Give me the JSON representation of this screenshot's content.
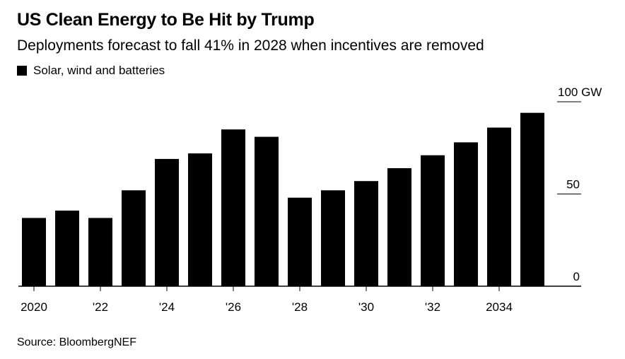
{
  "header": {
    "title": "US Clean Energy to Be Hit by Trump",
    "subtitle": "Deployments forecast to fall 41% in 2028 when incentives are removed"
  },
  "legend": {
    "label": "Solar, wind and batteries"
  },
  "footer": {
    "source": "Source: BloombergNEF"
  },
  "chart_data": {
    "type": "bar",
    "title": "US Clean Energy to Be Hit by Trump",
    "subtitle": "Deployments forecast to fall 41% in 2028 when incentives are removed",
    "categories": [
      2020,
      2021,
      2022,
      2023,
      2024,
      2025,
      2026,
      2027,
      2028,
      2029,
      2030,
      2031,
      2032,
      2033,
      2034,
      2035
    ],
    "series": [
      {
        "name": "Solar, wind and batteries",
        "values": [
          37,
          41,
          37,
          52,
          69,
          72,
          85,
          81,
          48,
          52,
          57,
          64,
          71,
          78,
          86,
          94
        ]
      }
    ],
    "x_tick_labels": [
      {
        "year": 2020,
        "label": "2020"
      },
      {
        "year": 2022,
        "label": "'22"
      },
      {
        "year": 2024,
        "label": "'24"
      },
      {
        "year": 2026,
        "label": "'26"
      },
      {
        "year": 2028,
        "label": "'28"
      },
      {
        "year": 2030,
        "label": "'30"
      },
      {
        "year": 2032,
        "label": "'32"
      },
      {
        "year": 2034,
        "label": "2034"
      }
    ],
    "y_ticks": [
      {
        "value": 0,
        "label": "0"
      },
      {
        "value": 50,
        "label": "50"
      },
      {
        "value": 100,
        "label": "100 GW"
      }
    ],
    "ylim": [
      0,
      100
    ],
    "ylabel": "",
    "xlabel": "",
    "grid": false,
    "legend_position": "top-left",
    "bar_color": "#000000"
  }
}
